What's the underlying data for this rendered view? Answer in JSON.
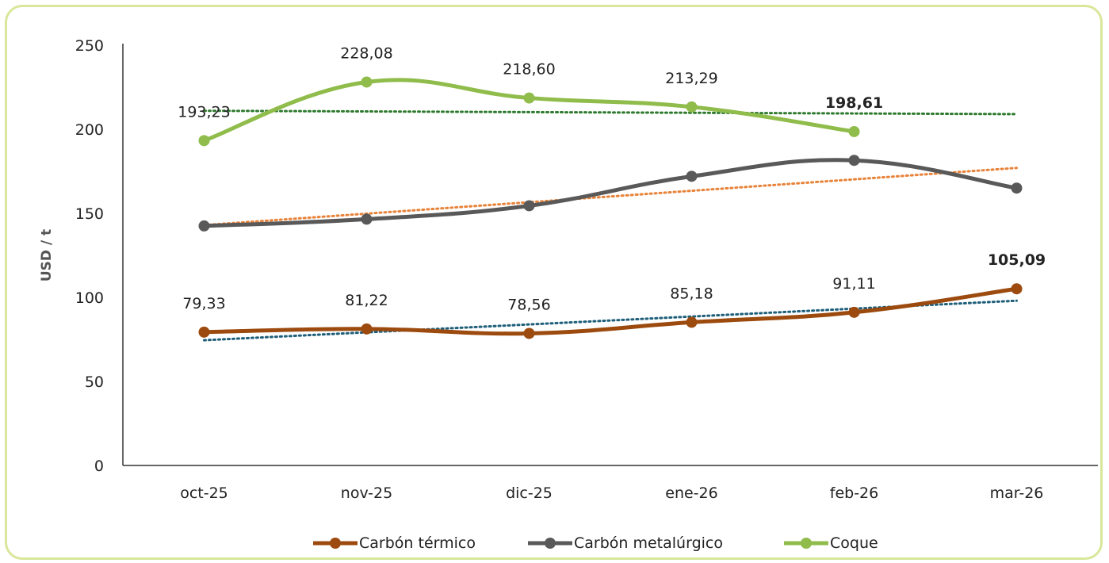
{
  "chart_data": {
    "type": "line",
    "categories": [
      "oct-25",
      "nov-25",
      "dic-25",
      "ene-26",
      "feb-26",
      "mar-26"
    ],
    "ylabel": "USD / t",
    "ylim": [
      0,
      250
    ],
    "yticks": [
      0,
      50,
      100,
      150,
      200,
      250
    ],
    "ytick_labels": [
      "0",
      "50",
      "100",
      "150",
      "200",
      "250"
    ],
    "grid": false,
    "legend_position": "bottom",
    "series": [
      {
        "name": "Carbón térmico",
        "color": "#9c4a0e",
        "values": [
          79.33,
          81.22,
          78.56,
          85.18,
          91.11,
          105.09
        ],
        "labels": [
          "79,33",
          "81,22",
          "78,56",
          "85,18",
          "91,11",
          "105,09"
        ],
        "bold_labels": [
          false,
          false,
          false,
          false,
          false,
          true
        ],
        "trendline": {
          "color": "#1f5f7a",
          "start": 74.5,
          "end": 98.0
        }
      },
      {
        "name": "Carbón metalúrgico",
        "color": "#595959",
        "values": [
          142.5,
          146.5,
          154.5,
          172.0,
          181.5,
          165.0
        ],
        "labels": [],
        "trendline": {
          "color": "#e8833a",
          "start": 143.0,
          "end": 177.0
        }
      },
      {
        "name": "Coque",
        "color": "#8fbc4a",
        "values": [
          193.23,
          228.08,
          218.6,
          213.29,
          198.61,
          null
        ],
        "labels": [
          "193,23",
          "228,08",
          "218,60",
          "213,29",
          "198,61",
          ""
        ],
        "bold_labels": [
          false,
          false,
          false,
          false,
          true,
          false
        ],
        "trendline": {
          "color": "#2e7a2e",
          "start": 211.0,
          "end": 209.0
        }
      }
    ]
  }
}
